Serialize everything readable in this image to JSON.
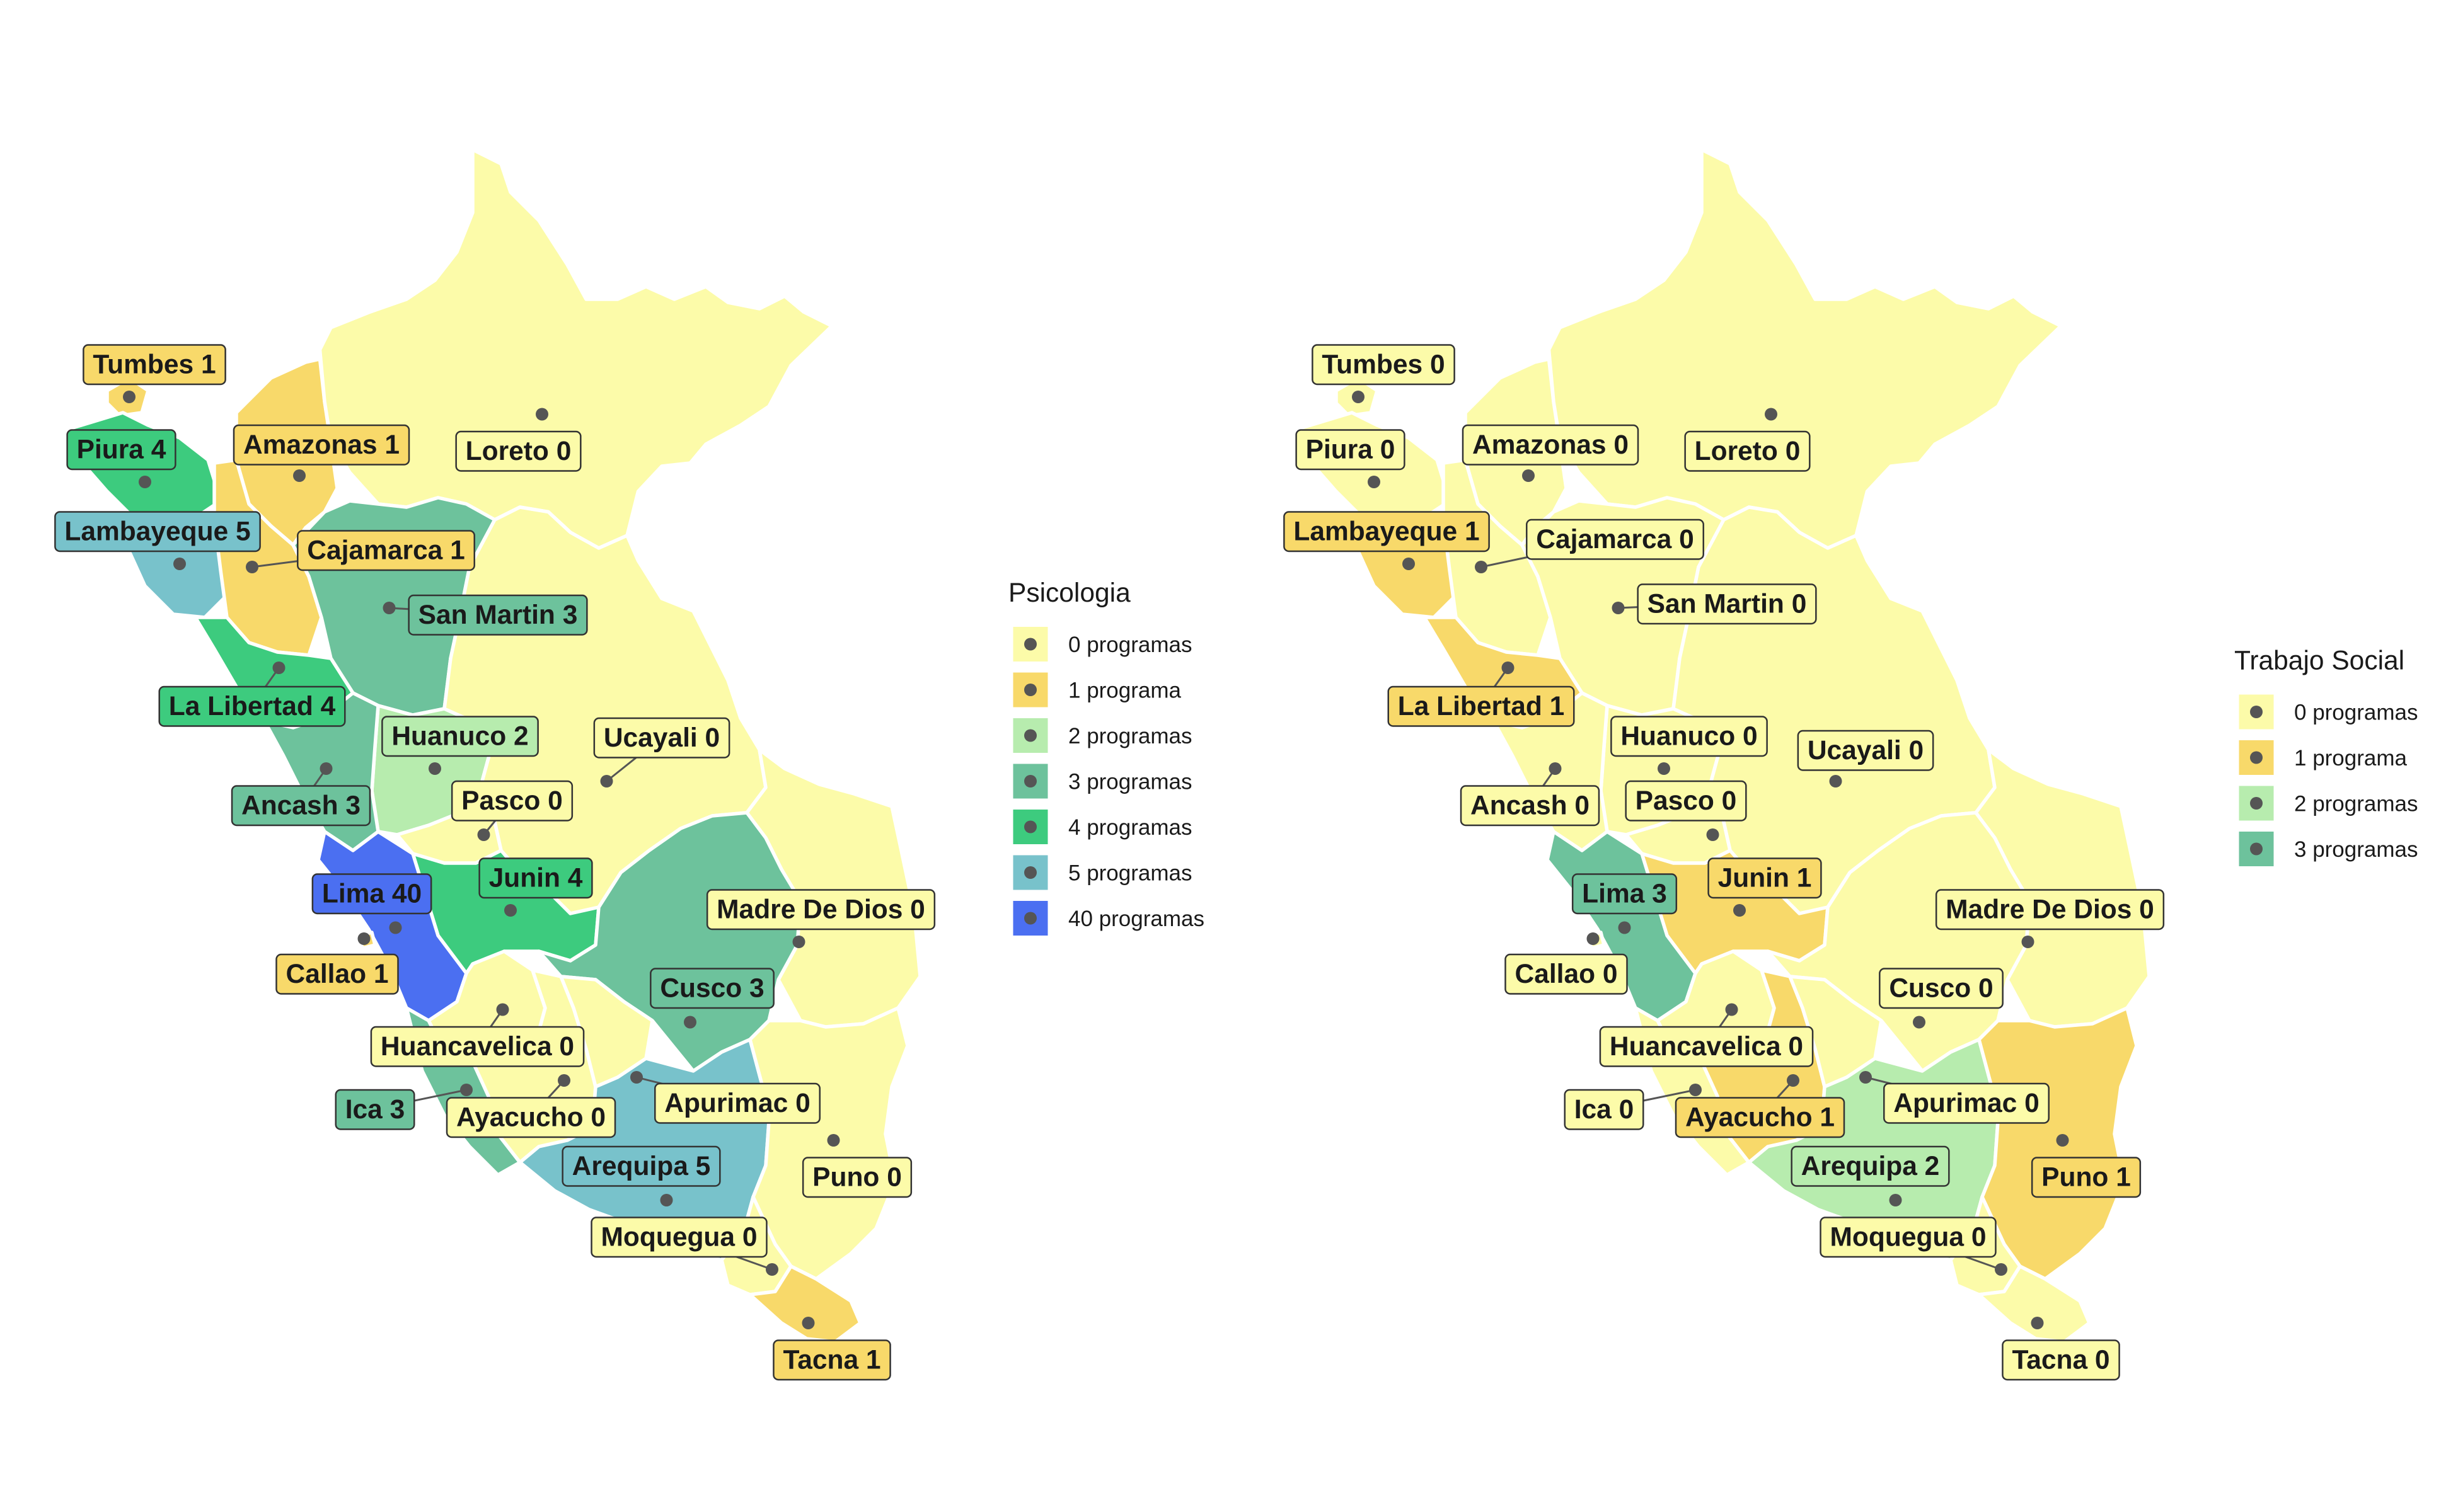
{
  "colors": {
    "0": "#FCFBA9",
    "1": "#F8D96A",
    "2": "#B7ECAE",
    "3": "#6DC29C",
    "4": "#3DCB7E",
    "5": "#78C2CB",
    "40": "#4B6FF1"
  },
  "maps": [
    {
      "legend_title": "Psicologia",
      "legend": [
        {
          "label": "0 programas",
          "level": "0"
        },
        {
          "label": "1 programa",
          "level": "1"
        },
        {
          "label": "2 programas",
          "level": "2"
        },
        {
          "label": "3 programas",
          "level": "3"
        },
        {
          "label": "4 programas",
          "level": "4"
        },
        {
          "label": "5 programas",
          "level": "5"
        },
        {
          "label": "40 programas",
          "level": "40"
        }
      ],
      "regions": [
        {
          "name": "Tumbes",
          "value": 1,
          "label": "Tumbes 1"
        },
        {
          "name": "Piura",
          "value": 4,
          "label": "Piura 4"
        },
        {
          "name": "Lambayeque",
          "value": 5,
          "label": "Lambayeque 5"
        },
        {
          "name": "Amazonas",
          "value": 1,
          "label": "Amazonas 1"
        },
        {
          "name": "Cajamarca",
          "value": 1,
          "label": "Cajamarca 1"
        },
        {
          "name": "Loreto",
          "value": 0,
          "label": "Loreto 0"
        },
        {
          "name": "San Martin",
          "value": 3,
          "label": "San Martin 3"
        },
        {
          "name": "La Libertad",
          "value": 4,
          "label": "La Libertad 4"
        },
        {
          "name": "Huanuco",
          "value": 2,
          "label": "Huanuco 2"
        },
        {
          "name": "Ucayali",
          "value": 0,
          "label": "Ucayali 0"
        },
        {
          "name": "Ancash",
          "value": 3,
          "label": "Ancash 3"
        },
        {
          "name": "Pasco",
          "value": 0,
          "label": "Pasco 0"
        },
        {
          "name": "Junin",
          "value": 4,
          "label": "Junin 4"
        },
        {
          "name": "Lima",
          "value": 40,
          "label": "Lima 40"
        },
        {
          "name": "Callao",
          "value": 1,
          "label": "Callao 1"
        },
        {
          "name": "Madre De Dios",
          "value": 0,
          "label": "Madre De Dios 0"
        },
        {
          "name": "Cusco",
          "value": 3,
          "label": "Cusco 3"
        },
        {
          "name": "Huancavelica",
          "value": 0,
          "label": "Huancavelica 0"
        },
        {
          "name": "Ica",
          "value": 3,
          "label": "Ica 3"
        },
        {
          "name": "Ayacucho",
          "value": 0,
          "label": "Ayacucho 0"
        },
        {
          "name": "Apurimac",
          "value": 0,
          "label": "Apurimac 0"
        },
        {
          "name": "Arequipa",
          "value": 5,
          "label": "Arequipa 5"
        },
        {
          "name": "Puno",
          "value": 0,
          "label": "Puno 0"
        },
        {
          "name": "Moquegua",
          "value": 0,
          "label": "Moquegua 0"
        },
        {
          "name": "Tacna",
          "value": 1,
          "label": "Tacna 1"
        }
      ]
    },
    {
      "legend_title": "Trabajo Social",
      "legend": [
        {
          "label": "0 programas",
          "level": "0"
        },
        {
          "label": "1 programa",
          "level": "1"
        },
        {
          "label": "2 programas",
          "level": "2"
        },
        {
          "label": "3 programas",
          "level": "3"
        }
      ],
      "regions": [
        {
          "name": "Tumbes",
          "value": 0,
          "label": "Tumbes 0"
        },
        {
          "name": "Piura",
          "value": 0,
          "label": "Piura 0"
        },
        {
          "name": "Lambayeque",
          "value": 1,
          "label": "Lambayeque 1"
        },
        {
          "name": "Amazonas",
          "value": 0,
          "label": "Amazonas 0"
        },
        {
          "name": "Cajamarca",
          "value": 0,
          "label": "Cajamarca 0"
        },
        {
          "name": "Loreto",
          "value": 0,
          "label": "Loreto 0"
        },
        {
          "name": "San Martin",
          "value": 0,
          "label": "San Martin 0"
        },
        {
          "name": "La Libertad",
          "value": 1,
          "label": "La Libertad 1"
        },
        {
          "name": "Huanuco",
          "value": 0,
          "label": "Huanuco 0"
        },
        {
          "name": "Ucayali",
          "value": 0,
          "label": "Ucayali 0"
        },
        {
          "name": "Ancash",
          "value": 0,
          "label": "Ancash 0"
        },
        {
          "name": "Pasco",
          "value": 0,
          "label": "Pasco 0"
        },
        {
          "name": "Junin",
          "value": 1,
          "label": "Junin 1"
        },
        {
          "name": "Lima",
          "value": 3,
          "label": "Lima 3"
        },
        {
          "name": "Callao",
          "value": 0,
          "label": "Callao 0"
        },
        {
          "name": "Madre De Dios",
          "value": 0,
          "label": "Madre De Dios 0"
        },
        {
          "name": "Cusco",
          "value": 0,
          "label": "Cusco 0"
        },
        {
          "name": "Huancavelica",
          "value": 0,
          "label": "Huancavelica 0"
        },
        {
          "name": "Ica",
          "value": 0,
          "label": "Ica 0"
        },
        {
          "name": "Ayacucho",
          "value": 1,
          "label": "Ayacucho 1"
        },
        {
          "name": "Apurimac",
          "value": 0,
          "label": "Apurimac 0"
        },
        {
          "name": "Arequipa",
          "value": 2,
          "label": "Arequipa 2"
        },
        {
          "name": "Puno",
          "value": 1,
          "label": "Puno 1"
        },
        {
          "name": "Moquegua",
          "value": 0,
          "label": "Moquegua 0"
        },
        {
          "name": "Tacna",
          "value": 0,
          "label": "Tacna 0"
        }
      ]
    }
  ]
}
